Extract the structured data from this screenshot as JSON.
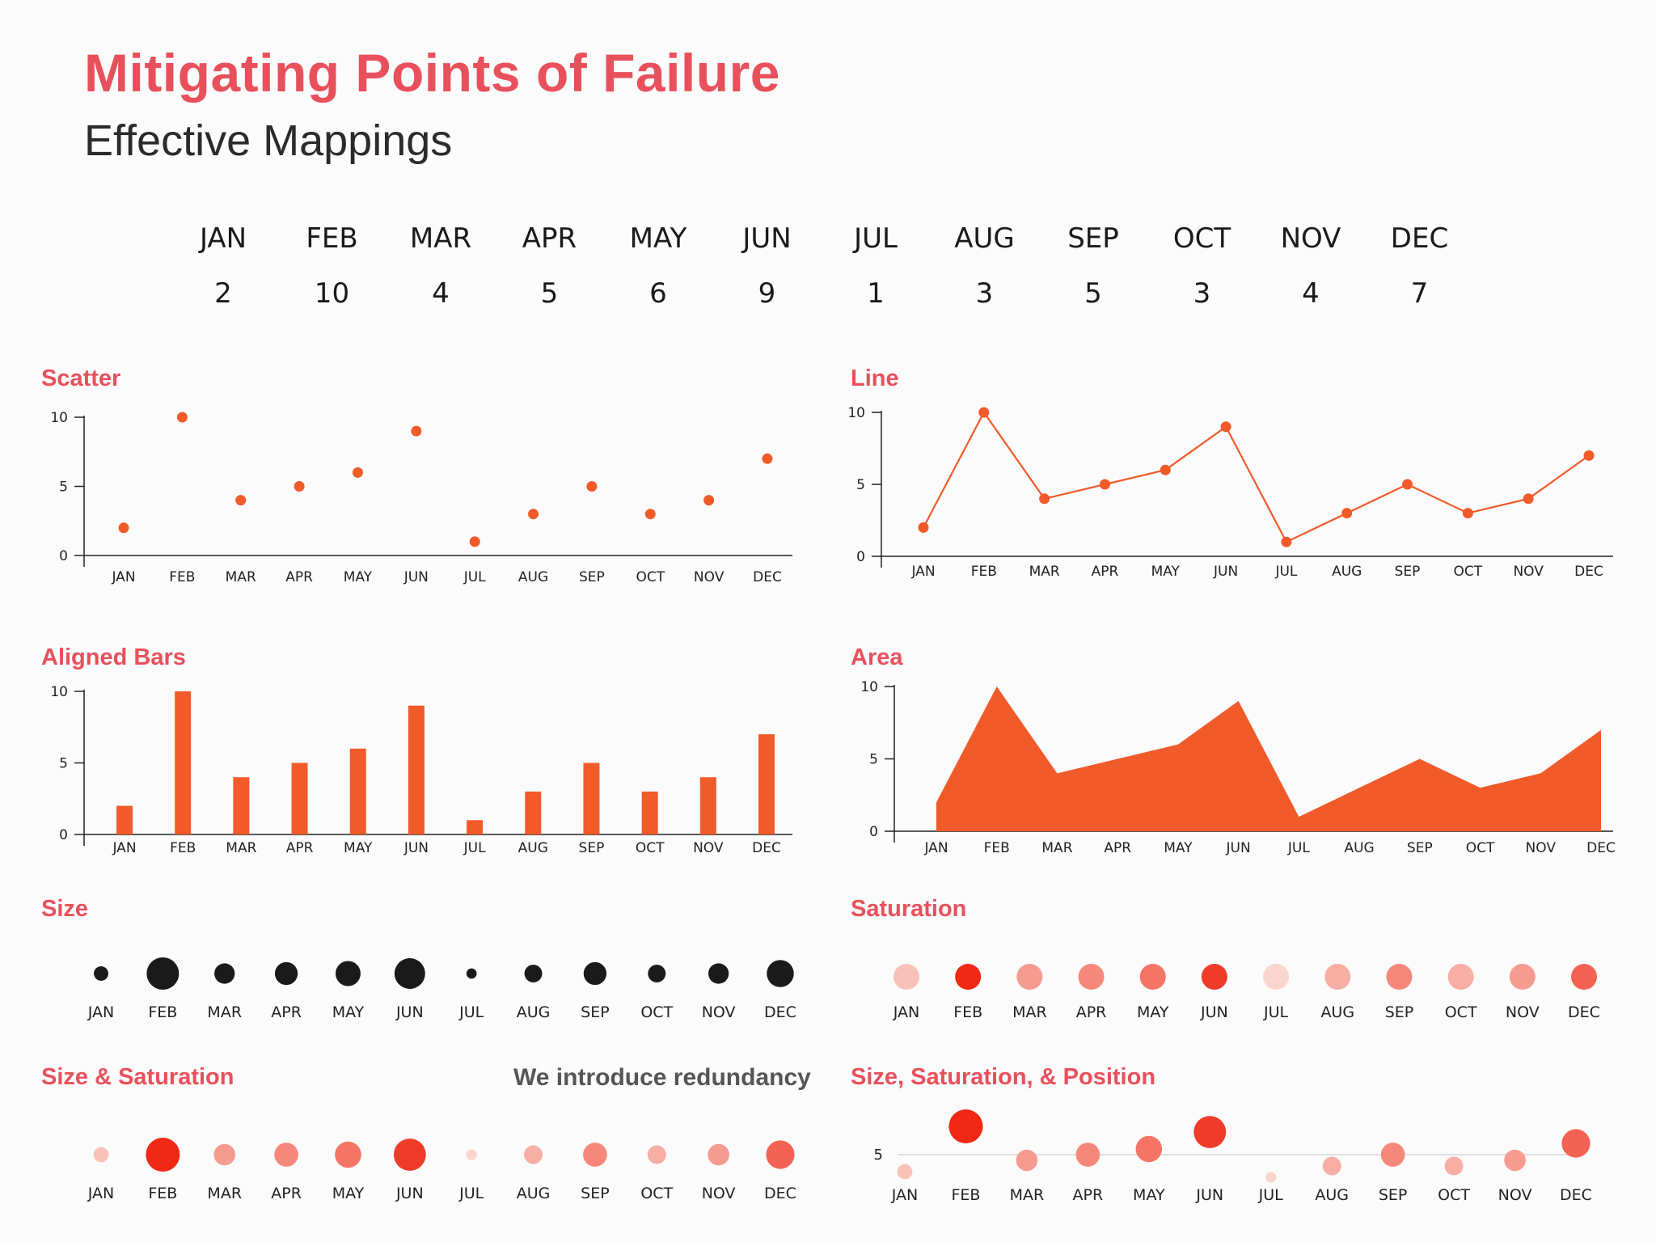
{
  "title": "Mitigating Points of Failure",
  "subtitle": "Effective Mappings",
  "note": "We introduce redundancy",
  "colors": {
    "accent": "#e8505b",
    "mark": "#f15a29",
    "dark": "#1a1a1a",
    "axis": "#222222",
    "muted": "#555555"
  },
  "months": [
    "JAN",
    "FEB",
    "MAR",
    "APR",
    "MAY",
    "JUN",
    "JUL",
    "AUG",
    "SEP",
    "OCT",
    "NOV",
    "DEC"
  ],
  "values": [
    2,
    10,
    4,
    5,
    6,
    9,
    1,
    3,
    5,
    3,
    4,
    7
  ],
  "chart_data": [
    {
      "id": "scatter",
      "type": "scatter",
      "title": "Scatter",
      "categories": [
        "JAN",
        "FEB",
        "MAR",
        "APR",
        "MAY",
        "JUN",
        "JUL",
        "AUG",
        "SEP",
        "OCT",
        "NOV",
        "DEC"
      ],
      "values": [
        2,
        10,
        4,
        5,
        6,
        9,
        1,
        3,
        5,
        3,
        4,
        7
      ],
      "ylim": [
        0,
        10
      ],
      "yticks": [
        0,
        5,
        10
      ]
    },
    {
      "id": "line",
      "type": "line",
      "title": "Line",
      "categories": [
        "JAN",
        "FEB",
        "MAR",
        "APR",
        "MAY",
        "JUN",
        "JUL",
        "AUG",
        "SEP",
        "OCT",
        "NOV",
        "DEC"
      ],
      "values": [
        2,
        10,
        4,
        5,
        6,
        9,
        1,
        3,
        5,
        3,
        4,
        7
      ],
      "ylim": [
        0,
        10
      ],
      "yticks": [
        0,
        5,
        10
      ]
    },
    {
      "id": "bars",
      "type": "bar",
      "title": "Aligned Bars",
      "categories": [
        "JAN",
        "FEB",
        "MAR",
        "APR",
        "MAY",
        "JUN",
        "JUL",
        "AUG",
        "SEP",
        "OCT",
        "NOV",
        "DEC"
      ],
      "values": [
        2,
        10,
        4,
        5,
        6,
        9,
        1,
        3,
        5,
        3,
        4,
        7
      ],
      "ylim": [
        0,
        10
      ],
      "yticks": [
        0,
        5,
        10
      ]
    },
    {
      "id": "area",
      "type": "area",
      "title": "Area",
      "categories": [
        "JAN",
        "FEB",
        "MAR",
        "APR",
        "MAY",
        "JUN",
        "JUL",
        "AUG",
        "SEP",
        "OCT",
        "NOV",
        "DEC"
      ],
      "values": [
        2,
        10,
        4,
        5,
        6,
        9,
        1,
        3,
        5,
        3,
        4,
        7
      ],
      "ylim": [
        0,
        10
      ],
      "yticks": [
        0,
        5,
        10
      ]
    },
    {
      "id": "size",
      "type": "scatter",
      "encoding": "size",
      "title": "Size",
      "categories": [
        "JAN",
        "FEB",
        "MAR",
        "APR",
        "MAY",
        "JUN",
        "JUL",
        "AUG",
        "SEP",
        "OCT",
        "NOV",
        "DEC"
      ],
      "values": [
        2,
        10,
        4,
        5,
        6,
        9,
        1,
        3,
        5,
        3,
        4,
        7
      ]
    },
    {
      "id": "saturation",
      "type": "scatter",
      "encoding": "saturation",
      "title": "Saturation",
      "categories": [
        "JAN",
        "FEB",
        "MAR",
        "APR",
        "MAY",
        "JUN",
        "JUL",
        "AUG",
        "SEP",
        "OCT",
        "NOV",
        "DEC"
      ],
      "values": [
        2,
        10,
        4,
        5,
        6,
        9,
        1,
        3,
        5,
        3,
        4,
        7
      ]
    },
    {
      "id": "size-sat",
      "type": "scatter",
      "encoding": "size+saturation",
      "title": "Size & Saturation",
      "categories": [
        "JAN",
        "FEB",
        "MAR",
        "APR",
        "MAY",
        "JUN",
        "JUL",
        "AUG",
        "SEP",
        "OCT",
        "NOV",
        "DEC"
      ],
      "values": [
        2,
        10,
        4,
        5,
        6,
        9,
        1,
        3,
        5,
        3,
        4,
        7
      ]
    },
    {
      "id": "size-sat-pos",
      "type": "scatter",
      "encoding": "size+saturation+position",
      "title": "Size, Saturation, & Position",
      "categories": [
        "JAN",
        "FEB",
        "MAR",
        "APR",
        "MAY",
        "JUN",
        "JUL",
        "AUG",
        "SEP",
        "OCT",
        "NOV",
        "DEC"
      ],
      "values": [
        2,
        10,
        4,
        5,
        6,
        9,
        1,
        3,
        5,
        3,
        4,
        7
      ],
      "yticks": [
        5
      ]
    }
  ]
}
